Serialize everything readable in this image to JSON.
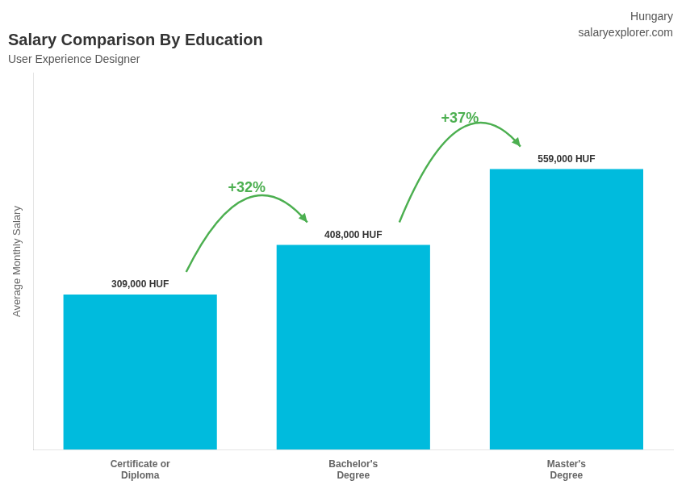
{
  "chart_data": {
    "type": "bar",
    "title": "Salary Comparison By Education",
    "subtitle": "User Experience Designer",
    "annotations": [
      "Hungary",
      "salaryexplorer.com"
    ],
    "change_labels": [
      "+32%",
      "+37%"
    ],
    "ylabel": "Average Monthly Salary",
    "categories": [
      "Certificate or\nDiploma",
      "Bachelor's\nDegree",
      "Master's\nDegree"
    ],
    "values": [
      309000,
      408000,
      559000
    ],
    "value_labels": [
      "309,000 HUF",
      "408,000 HUF",
      "559,000 HUF"
    ],
    "data_labels": true,
    "color": "#00bbdd",
    "ylim": [
      0,
      750000
    ],
    "grid": false,
    "tick_labels": "x"
  }
}
